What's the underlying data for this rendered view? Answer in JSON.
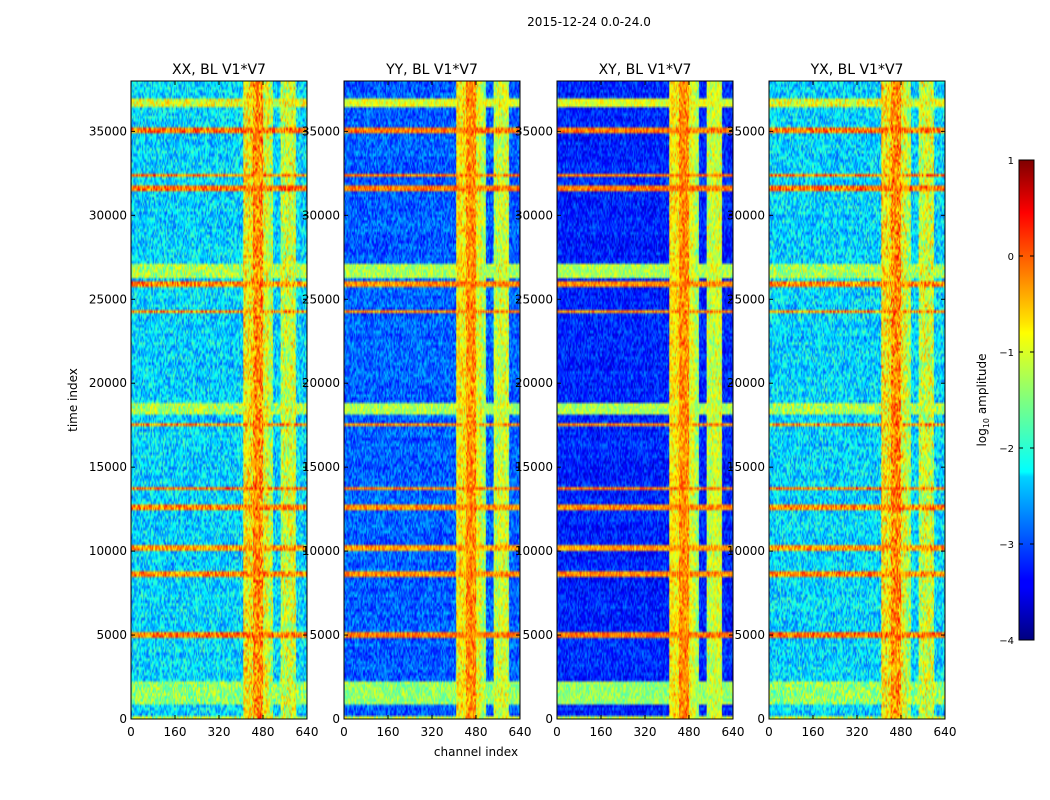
{
  "chart_data": {
    "type": "heatmap",
    "suptitle": "2015-12-24 0.0-24.0",
    "xlabel": "channel index",
    "ylabel": "time index",
    "xlim": [
      0,
      640
    ],
    "ylim": [
      0,
      38000
    ],
    "xticks": [
      0,
      160,
      320,
      480,
      640
    ],
    "yticks": [
      0,
      5000,
      10000,
      15000,
      20000,
      25000,
      30000,
      35000
    ],
    "xtick_labels": [
      "0",
      "160",
      "320",
      "480",
      "640"
    ],
    "ytick_labels": [
      "0",
      "5000",
      "10000",
      "15000",
      "20000",
      "25000",
      "30000",
      "35000"
    ],
    "panels": [
      {
        "title": "XX, BL V1*V7",
        "background_log_amplitude": -2.3,
        "noise": 0.6
      },
      {
        "title": "YY, BL V1*V7",
        "background_log_amplitude": -2.9,
        "noise": 0.45
      },
      {
        "title": "XY, BL V1*V7",
        "background_log_amplitude": -3.2,
        "noise": 0.4
      },
      {
        "title": "YX, BL V1*V7",
        "background_log_amplitude": -2.3,
        "noise": 0.6
      }
    ],
    "bright_channel_bands": [
      {
        "start": 408,
        "end": 445,
        "log_amplitude": -0.8
      },
      {
        "start": 445,
        "end": 480,
        "log_amplitude": -0.3
      },
      {
        "start": 480,
        "end": 500,
        "log_amplitude": -1.0
      },
      {
        "start": 500,
        "end": 515,
        "log_amplitude": -1.3
      },
      {
        "start": 545,
        "end": 560,
        "log_amplitude": -1.2
      },
      {
        "start": 560,
        "end": 600,
        "log_amplitude": -1.1
      }
    ],
    "flagged_time_rows": [
      {
        "start": 0,
        "end": 100,
        "log_amplitude": -1.2
      },
      {
        "start": 900,
        "end": 2200,
        "log_amplitude": -1.4
      },
      {
        "start": 4850,
        "end": 5250,
        "log_amplitude": -0.2
      },
      {
        "start": 8500,
        "end": 8800,
        "log_amplitude": -0.3
      },
      {
        "start": 10000,
        "end": 10300,
        "log_amplitude": -0.4
      },
      {
        "start": 12400,
        "end": 12800,
        "log_amplitude": -0.3
      },
      {
        "start": 13700,
        "end": 13900,
        "log_amplitude": -0.2
      },
      {
        "start": 17400,
        "end": 17600,
        "log_amplitude": -0.3
      },
      {
        "start": 18100,
        "end": 18900,
        "log_amplitude": -1.3
      },
      {
        "start": 24200,
        "end": 24400,
        "log_amplitude": -0.3
      },
      {
        "start": 25800,
        "end": 26100,
        "log_amplitude": -0.3
      },
      {
        "start": 26300,
        "end": 27200,
        "log_amplitude": -1.3
      },
      {
        "start": 31500,
        "end": 31700,
        "log_amplitude": -0.2
      },
      {
        "start": 32300,
        "end": 32500,
        "log_amplitude": -0.2
      },
      {
        "start": 34900,
        "end": 35300,
        "log_amplitude": -0.2
      },
      {
        "start": 36500,
        "end": 37000,
        "log_amplitude": -1.0
      }
    ],
    "colorbar": {
      "label": "log10 amplitude",
      "label_main": "log",
      "label_sub": "10",
      "label_rest": " amplitude",
      "range": [
        -4,
        1
      ],
      "ticks": [
        1,
        0,
        -1,
        -2,
        -3,
        -4
      ],
      "tick_labels": [
        "1",
        "0",
        "−1",
        "−2",
        "−3",
        "−4"
      ]
    }
  }
}
